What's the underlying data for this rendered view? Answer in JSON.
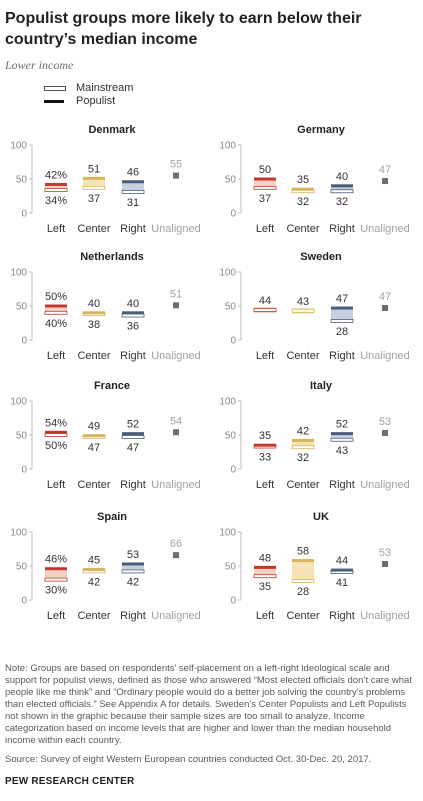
{
  "title": "Populist groups more likely to earn below their country’s median income",
  "subtitle": "Lower income",
  "legend": {
    "mainstream": "Mainstream",
    "populist": "Populist"
  },
  "colors": {
    "left": "#c0392b",
    "left_fill": "#f6cfc4",
    "center": "#d7b35a",
    "center_fill": "#f4e3b5",
    "right": "#4a5e7a",
    "right_fill": "#c8d0dd",
    "unaligned": "#6d6e71",
    "axis": "#bdbdbd"
  },
  "chart_data": [
    {
      "type": "range",
      "title": "Denmark",
      "ylim": [
        0,
        100
      ],
      "yticks": [
        "0",
        "50",
        "100"
      ],
      "categories": [
        "Left",
        "Center",
        "Right",
        "Unaligned"
      ],
      "populist": [
        42,
        51,
        46,
        55
      ],
      "mainstream": [
        34,
        37,
        31,
        null
      ],
      "top_labels": [
        "42%",
        "51",
        "46",
        "55"
      ],
      "bottom_labels": [
        "34%",
        "37",
        "31",
        ""
      ]
    },
    {
      "type": "range",
      "title": "Germany",
      "ylim": [
        0,
        100
      ],
      "yticks": [
        "0",
        "50",
        "100"
      ],
      "categories": [
        "Left",
        "Center",
        "Right",
        "Unaligned"
      ],
      "populist": [
        50,
        35,
        40,
        47
      ],
      "mainstream": [
        37,
        32,
        32,
        null
      ],
      "top_labels": [
        "50",
        "35",
        "40",
        "47"
      ],
      "bottom_labels": [
        "37",
        "32",
        "32",
        ""
      ]
    },
    {
      "type": "range",
      "title": "Netherlands",
      "ylim": [
        0,
        100
      ],
      "yticks": [
        "0",
        "50",
        "100"
      ],
      "categories": [
        "Left",
        "Center",
        "Right",
        "Unaligned"
      ],
      "populist": [
        50,
        40,
        40,
        51
      ],
      "mainstream": [
        40,
        38,
        36,
        null
      ],
      "top_labels": [
        "50%",
        "40",
        "40",
        "51"
      ],
      "bottom_labels": [
        "40%",
        "38",
        "36",
        ""
      ]
    },
    {
      "type": "range",
      "title": "Sweden",
      "ylim": [
        0,
        100
      ],
      "yticks": [
        "0",
        "50",
        "100"
      ],
      "categories": [
        "Left",
        "Center",
        "Right",
        "Unaligned"
      ],
      "populist": [
        null,
        null,
        47,
        47
      ],
      "mainstream": [
        44,
        43,
        28,
        null
      ],
      "top_labels": [
        "44",
        "43",
        "47",
        "47"
      ],
      "bottom_labels": [
        "",
        "",
        "28",
        ""
      ]
    },
    {
      "type": "range",
      "title": "France",
      "ylim": [
        0,
        100
      ],
      "yticks": [
        "0",
        "50",
        "100"
      ],
      "categories": [
        "Left",
        "Center",
        "Right",
        "Unaligned"
      ],
      "populist": [
        54,
        49,
        52,
        54
      ],
      "mainstream": [
        50,
        47,
        47,
        null
      ],
      "top_labels": [
        "54%",
        "49",
        "52",
        "54"
      ],
      "bottom_labels": [
        "50%",
        "47",
        "47",
        ""
      ]
    },
    {
      "type": "range",
      "title": "Italy",
      "ylim": [
        0,
        100
      ],
      "yticks": [
        "0",
        "50",
        "100"
      ],
      "categories": [
        "Left",
        "Center",
        "Right",
        "Unaligned"
      ],
      "populist": [
        35,
        42,
        52,
        53
      ],
      "mainstream": [
        33,
        32,
        43,
        null
      ],
      "top_labels": [
        "35",
        "42",
        "52",
        "53"
      ],
      "bottom_labels": [
        "33",
        "32",
        "43",
        ""
      ]
    },
    {
      "type": "range",
      "title": "Spain",
      "ylim": [
        0,
        100
      ],
      "yticks": [
        "0",
        "50",
        "100"
      ],
      "categories": [
        "Left",
        "Center",
        "Right",
        "Unaligned"
      ],
      "populist": [
        46,
        45,
        53,
        66
      ],
      "mainstream": [
        30,
        42,
        42,
        null
      ],
      "top_labels": [
        "46%",
        "45",
        "53",
        "66"
      ],
      "bottom_labels": [
        "30%",
        "42",
        "42",
        ""
      ]
    },
    {
      "type": "range",
      "title": "UK",
      "ylim": [
        0,
        100
      ],
      "yticks": [
        "0",
        "50",
        "100"
      ],
      "categories": [
        "Left",
        "Center",
        "Right",
        "Unaligned"
      ],
      "populist": [
        48,
        58,
        44,
        53
      ],
      "mainstream": [
        35,
        28,
        41,
        null
      ],
      "top_labels": [
        "48",
        "58",
        "44",
        "53"
      ],
      "bottom_labels": [
        "35",
        "28",
        "41",
        ""
      ]
    }
  ],
  "note": "Note: Groups are based on respondents’ self-placement on a left-right ideological scale and support for populist views, defined as those who answered “Most elected officials don’t care what people like me think” and “Ordinary people would do a better job solving the country’s problems than elected officials.” See Appendix A for details. Sweden’s Center Populists and Left Populists not shown in the graphic because their sample sizes are too small to analyze. Income categorization based on income levels that are higher and lower than the median household income within each country.",
  "source": "Source: Survey of eight Western European countries conducted Oct. 30-Dec. 20, 2017.",
  "credit": "PEW RESEARCH CENTER"
}
